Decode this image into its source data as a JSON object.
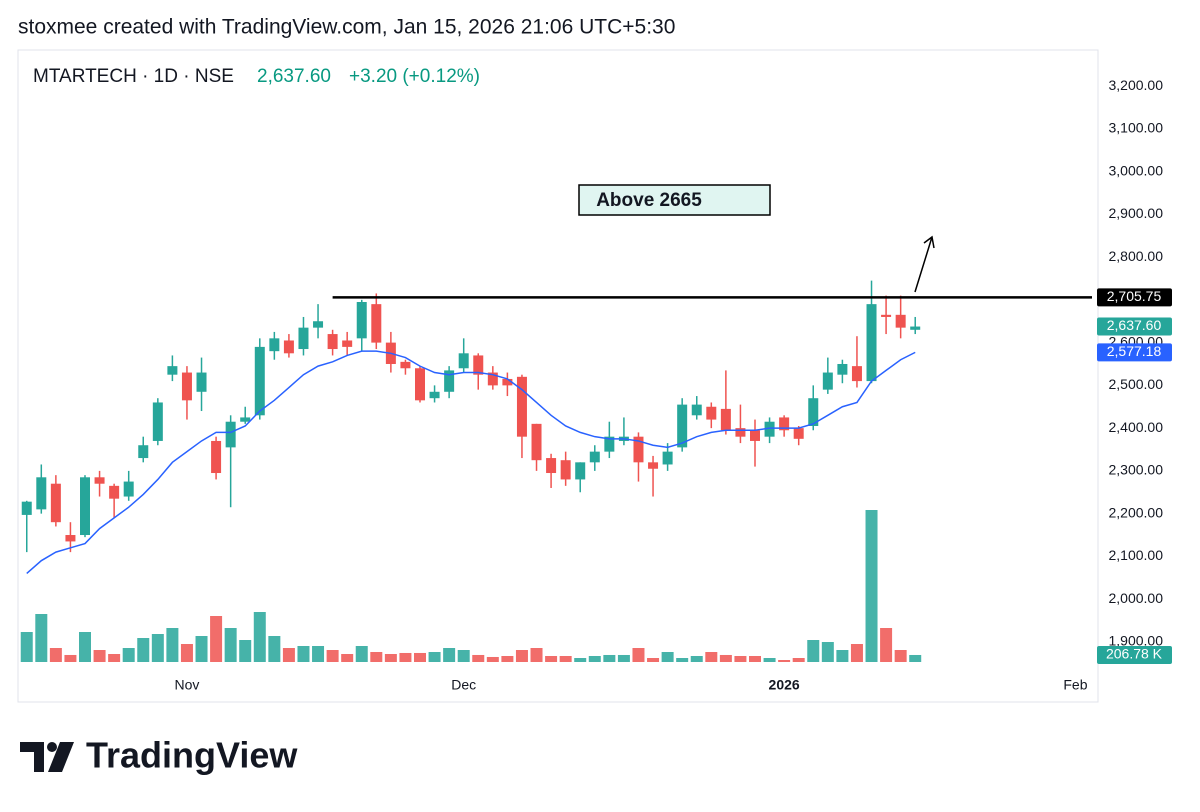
{
  "chart_data": {
    "type": "candlestick",
    "credit": "stoxmee created with TradingView.com, Jan 15, 2026 21:06 UTC+5:30",
    "symbol": "MTARTECH · 1D · NSE",
    "last_price": "2,637.60",
    "change": "+3.20 (+0.12%)",
    "annotation": "Above 2665",
    "logo": "TradingView",
    "up_color": "#26a69a",
    "down_color": "#ef5350",
    "ma_color": "#2962ff",
    "open": [
      2197,
      2210,
      2270,
      2150,
      2150,
      2285,
      2265,
      2240,
      2330,
      2370,
      2525,
      2530,
      2485,
      2370,
      2355,
      2415,
      2430,
      2580,
      2605,
      2585,
      2635,
      2620,
      2605,
      2610,
      2690,
      2600,
      2555,
      2540,
      2470,
      2485,
      2540,
      2570,
      2530,
      2515,
      2520,
      2410,
      2330,
      2325,
      2280,
      2320,
      2345,
      2370,
      2380,
      2320,
      2315,
      2355,
      2430,
      2450,
      2445,
      2400,
      2395,
      2380,
      2425,
      2400,
      2405,
      2490,
      2525,
      2545,
      2510,
      2665,
      2665,
      2630
    ],
    "high": [
      2230,
      2315,
      2290,
      2180,
      2290,
      2300,
      2270,
      2300,
      2380,
      2470,
      2570,
      2545,
      2565,
      2380,
      2430,
      2450,
      2610,
      2625,
      2620,
      2660,
      2690,
      2630,
      2625,
      2700,
      2715,
      2625,
      2560,
      2545,
      2500,
      2545,
      2610,
      2575,
      2545,
      2530,
      2525,
      2410,
      2340,
      2345,
      2320,
      2360,
      2415,
      2425,
      2390,
      2335,
      2365,
      2470,
      2475,
      2460,
      2535,
      2455,
      2420,
      2425,
      2430,
      2405,
      2500,
      2565,
      2560,
      2615,
      2745,
      2710,
      2710,
      2660
    ],
    "low": [
      2110,
      2200,
      2170,
      2110,
      2145,
      2240,
      2190,
      2230,
      2320,
      2360,
      2510,
      2420,
      2440,
      2280,
      2215,
      2410,
      2420,
      2560,
      2565,
      2570,
      2610,
      2570,
      2570,
      2580,
      2585,
      2530,
      2525,
      2460,
      2460,
      2470,
      2530,
      2490,
      2490,
      2475,
      2330,
      2300,
      2260,
      2265,
      2250,
      2300,
      2330,
      2360,
      2275,
      2240,
      2300,
      2345,
      2420,
      2400,
      2385,
      2365,
      2310,
      2365,
      2380,
      2360,
      2395,
      2480,
      2505,
      2495,
      2505,
      2620,
      2610,
      2620
    ],
    "close": [
      2228,
      2285,
      2180,
      2135,
      2285,
      2270,
      2235,
      2275,
      2360,
      2460,
      2545,
      2465,
      2530,
      2295,
      2415,
      2425,
      2590,
      2610,
      2575,
      2635,
      2650,
      2585,
      2590,
      2695,
      2600,
      2550,
      2540,
      2465,
      2485,
      2535,
      2575,
      2525,
      2500,
      2500,
      2380,
      2325,
      2295,
      2280,
      2320,
      2345,
      2380,
      2380,
      2320,
      2305,
      2345,
      2455,
      2455,
      2420,
      2395,
      2380,
      2370,
      2415,
      2395,
      2375,
      2470,
      2530,
      2550,
      2510,
      2690,
      2660,
      2635,
      2637.6
    ],
    "ma": [
      2060,
      2090,
      2110,
      2120,
      2130,
      2165,
      2190,
      2215,
      2245,
      2280,
      2320,
      2345,
      2370,
      2390,
      2390,
      2405,
      2440,
      2465,
      2495,
      2525,
      2545,
      2555,
      2570,
      2580,
      2580,
      2575,
      2565,
      2545,
      2530,
      2525,
      2530,
      2530,
      2525,
      2515,
      2490,
      2460,
      2430,
      2405,
      2390,
      2380,
      2375,
      2375,
      2370,
      2360,
      2355,
      2365,
      2380,
      2390,
      2395,
      2395,
      2395,
      2400,
      2400,
      2400,
      2410,
      2430,
      2450,
      2460,
      2510,
      2535,
      2560,
      2577.18
    ],
    "volume": [
      885,
      1416,
      413,
      207,
      885,
      354,
      236,
      413,
      708,
      826,
      1003,
      531,
      767,
      1357,
      1003,
      649,
      1475,
      767,
      413,
      472,
      472,
      354,
      236,
      472,
      295,
      236,
      266,
      266,
      295,
      413,
      354,
      207,
      148,
      177,
      354,
      413,
      177,
      177,
      118,
      177,
      207,
      207,
      413,
      118,
      295,
      118,
      177,
      295,
      207,
      177,
      177,
      118,
      59,
      118,
      649,
      590,
      354,
      531,
      4484,
      1003,
      354,
      206.78
    ],
    "volume_label": "206.78 K",
    "xlim": [
      -0.6,
      73
    ],
    "xticks": [
      {
        "value": 11,
        "label": "Nov"
      },
      {
        "value": 30,
        "label": "Dec"
      },
      {
        "value": 52,
        "label": "2026"
      },
      {
        "value": 72,
        "label": "Feb"
      }
    ],
    "ylim": [
      1853,
      3261
    ],
    "yticks": [
      {
        "value": 1900,
        "label": "1,900.00"
      },
      {
        "value": 2000,
        "label": "2,000.00"
      },
      {
        "value": 2100,
        "label": "2,100.00"
      },
      {
        "value": 2200,
        "label": "2,200.00"
      },
      {
        "value": 2300,
        "label": "2,300.00"
      },
      {
        "value": 2400,
        "label": "2,400.00"
      },
      {
        "value": 2500,
        "label": "2,500.00"
      },
      {
        "value": 2600,
        "label": "2,600.00"
      },
      {
        "value": 2700,
        "label": "2,700.00"
      },
      {
        "value": 2800,
        "label": "2,800.00"
      },
      {
        "value": 2900,
        "label": "2,900.00"
      },
      {
        "value": 3000,
        "label": "3,000.00"
      },
      {
        "value": 3100,
        "label": "3,100.00"
      },
      {
        "value": 3200,
        "label": "3,200.00"
      }
    ],
    "hline": {
      "value": 2705.75,
      "label": "2,705.75",
      "start": 21,
      "color": "#000000"
    },
    "price_labels": [
      {
        "value": 2637.6,
        "label": "2,637.60",
        "color": "#26a69a"
      },
      {
        "value": 2577.18,
        "label": "2,577.18",
        "color": "#2962ff"
      }
    ]
  }
}
